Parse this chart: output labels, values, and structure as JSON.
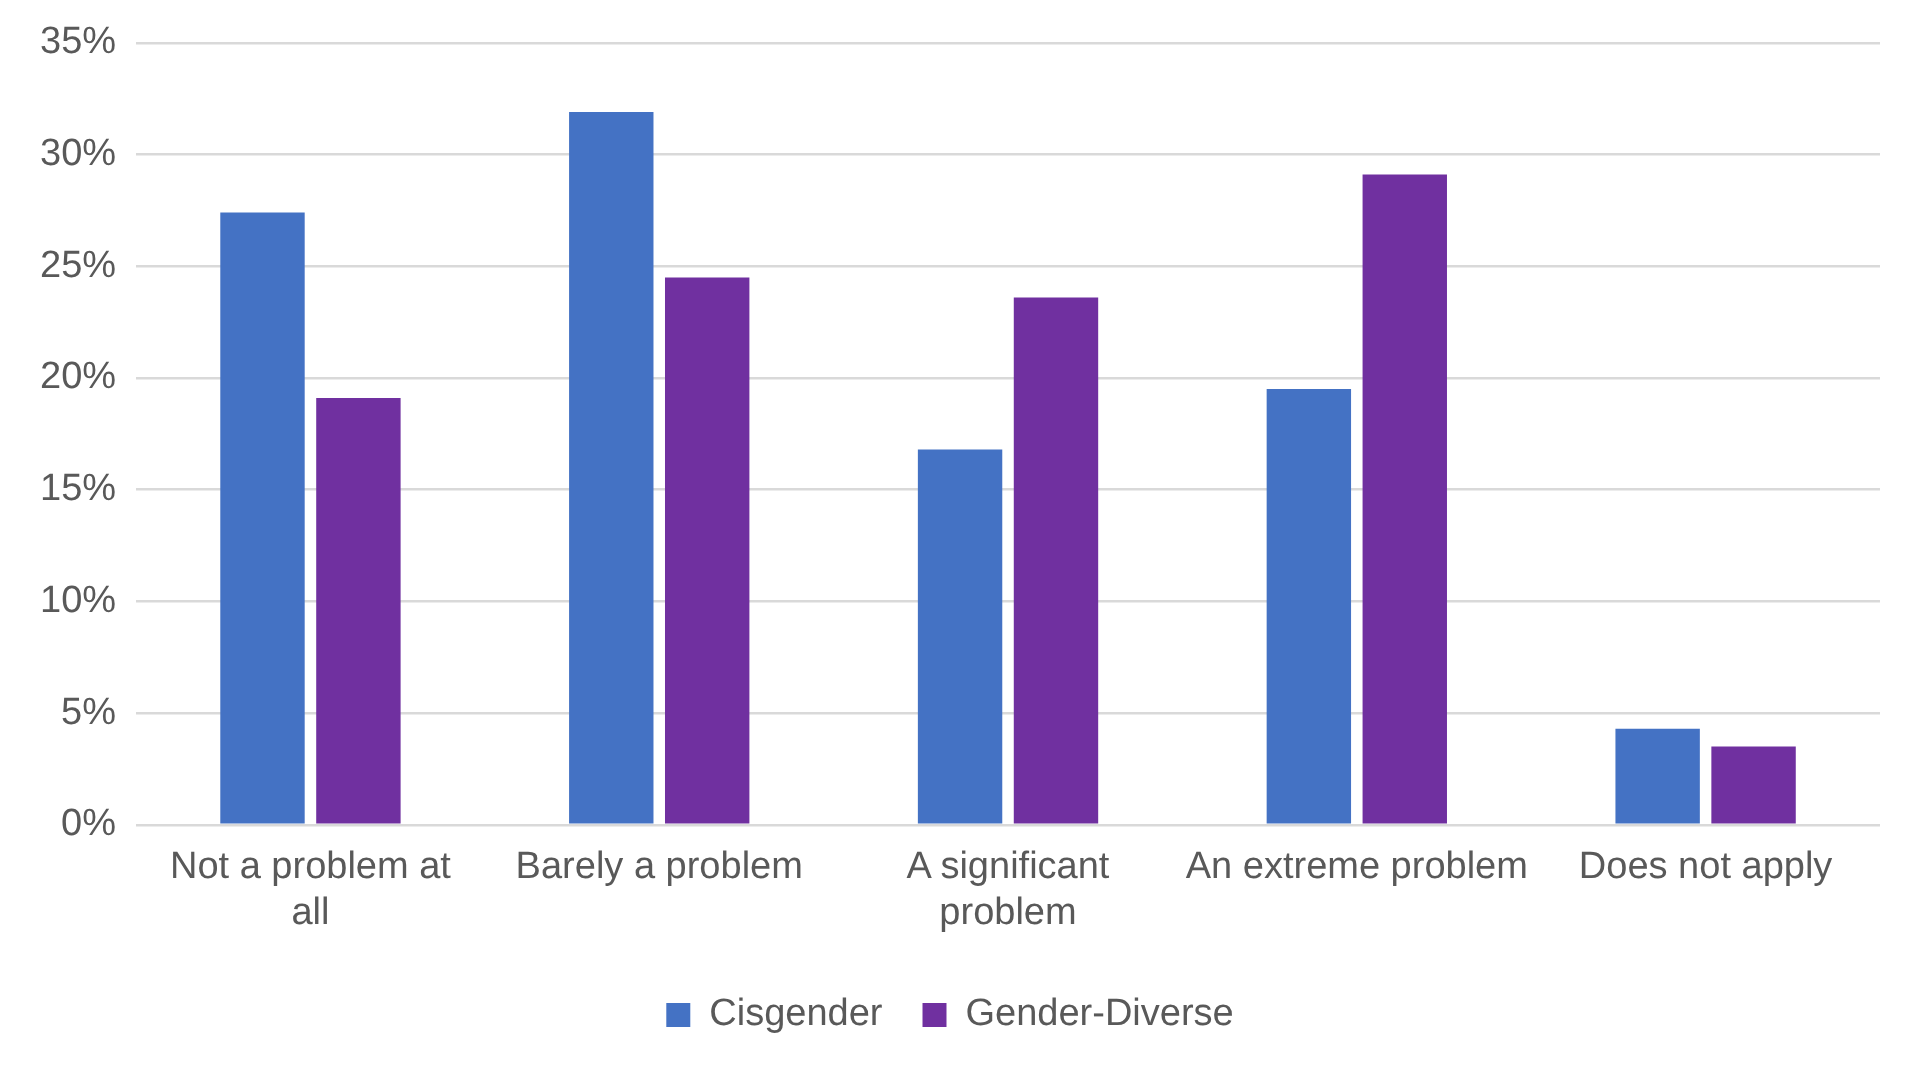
{
  "chart_data": {
    "type": "bar",
    "categories": [
      "Not a problem at all",
      "Barely a problem",
      "A significant problem",
      "An extreme problem",
      "Does not apply"
    ],
    "series": [
      {
        "name": "Cisgender",
        "color": "#4472c4",
        "values": [
          27.4,
          31.9,
          16.8,
          19.5,
          4.3
        ]
      },
      {
        "name": "Gender-Diverse",
        "color": "#7030a0",
        "values": [
          19.1,
          24.5,
          23.6,
          29.1,
          3.5
        ]
      }
    ],
    "ylim": [
      0,
      35
    ],
    "yticks": [
      {
        "value": 0,
        "label": "0%"
      },
      {
        "value": 5,
        "label": "5%"
      },
      {
        "value": 10,
        "label": "10%"
      },
      {
        "value": 15,
        "label": "15%"
      },
      {
        "value": 20,
        "label": "20%"
      },
      {
        "value": 25,
        "label": "25%"
      },
      {
        "value": 30,
        "label": "30%"
      },
      {
        "value": 35,
        "label": "35%"
      }
    ],
    "grid": "y",
    "legend": "bottom"
  }
}
